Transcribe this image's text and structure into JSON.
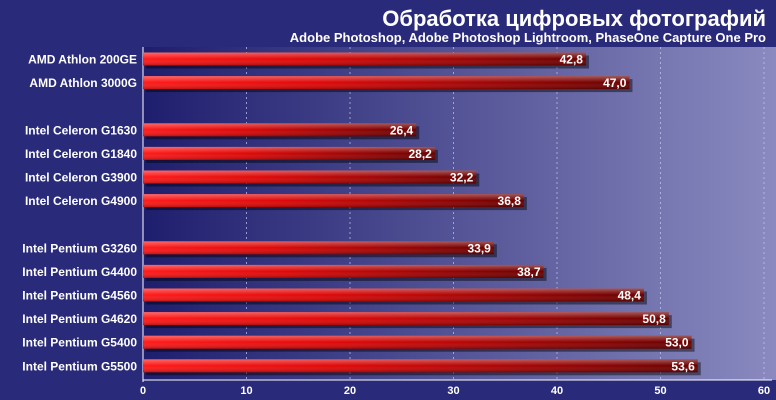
{
  "chart_data": {
    "type": "bar",
    "orientation": "horizontal",
    "title": "Обработка цифровых фотографий",
    "subtitle": "Adobe Photoshop, Adobe Photoshop Lightroom, PhaseOne Capture One Pro",
    "xlabel": "",
    "ylabel": "",
    "xlim": [
      0,
      60
    ],
    "xticks": [
      "0",
      "10",
      "20",
      "30",
      "40",
      "50",
      "60"
    ],
    "grid": true,
    "legend": "none",
    "groups": [
      {
        "items": [
          {
            "label": "AMD Athlon 200GE",
            "value": 42.8,
            "value_label": "42,8"
          },
          {
            "label": "AMD Athlon 3000G",
            "value": 47.0,
            "value_label": "47,0"
          }
        ]
      },
      {
        "items": [
          {
            "label": "Intel Celeron G1630",
            "value": 26.4,
            "value_label": "26,4"
          },
          {
            "label": "Intel Celeron G1840",
            "value": 28.2,
            "value_label": "28,2"
          },
          {
            "label": "Intel Celeron G3900",
            "value": 32.2,
            "value_label": "32,2"
          },
          {
            "label": "Intel Celeron G4900",
            "value": 36.8,
            "value_label": "36,8"
          }
        ]
      },
      {
        "items": [
          {
            "label": "Intel Pentium G3260",
            "value": 33.9,
            "value_label": "33,9"
          },
          {
            "label": "Intel Pentium G4400",
            "value": 38.7,
            "value_label": "38,7"
          },
          {
            "label": "Intel Pentium G4560",
            "value": 48.4,
            "value_label": "48,4"
          },
          {
            "label": "Intel Pentium G4620",
            "value": 50.8,
            "value_label": "50,8"
          },
          {
            "label": "Intel Pentium G5400",
            "value": 53.0,
            "value_label": "53,0"
          },
          {
            "label": "Intel Pentium G5500",
            "value": 53.6,
            "value_label": "53,6"
          }
        ]
      }
    ],
    "colors": {
      "bar_start": "#ff1a1a",
      "bar_end": "#6a0000",
      "panel_left": "#1e1e6e",
      "panel_right": "#8a8ac0"
    }
  }
}
